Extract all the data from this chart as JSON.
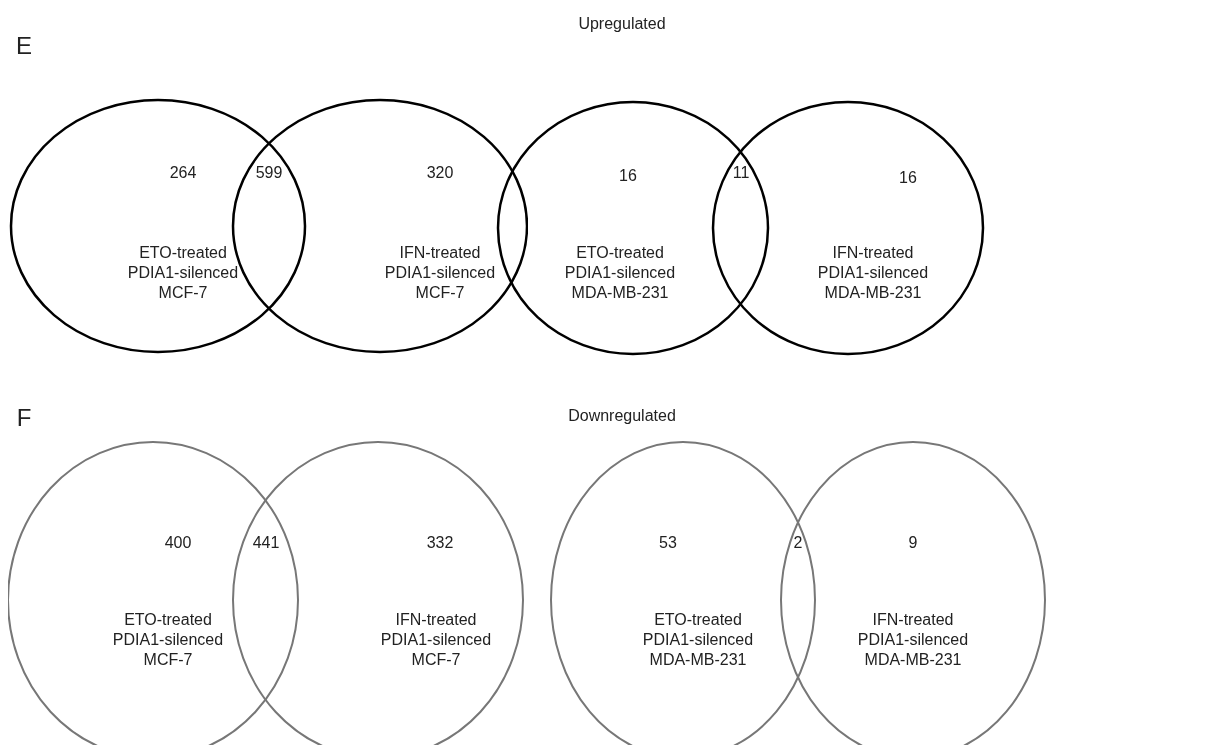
{
  "chart_data": [
    {
      "type": "other",
      "title": "Upregulated",
      "annotations": [
        "E"
      ],
      "categories": [
        "ETO-treated\nPDIA1-silenced\nMCF-7",
        null,
        "IFN-treated\nPDIA1-silenced\nMCF-7"
      ],
      "values": [
        264,
        599,
        320
      ],
      "data_labels": true,
      "color": "#000000"
    },
    {
      "type": "other",
      "categories": [
        "ETO-treated\nPDIA1-silenced\nMDA-MB-231",
        null,
        "IFN-treated\nPDIA1-silenced\nMDA-MB-231"
      ],
      "values": [
        16,
        11,
        16
      ],
      "data_labels": true,
      "color": "#000000"
    },
    {
      "type": "other",
      "title": "Downregulated",
      "annotations": [
        "F"
      ],
      "categories": [
        "ETO-treated\nPDIA1-silenced\nMCF-7",
        null,
        "IFN-treated\nPDIA1-silenced\nMCF-7"
      ],
      "values": [
        400,
        441,
        332
      ],
      "data_labels": true,
      "color": "#777777"
    },
    {
      "type": "other",
      "categories": [
        "ETO-treated\nPDIA1-silenced\nMDA-MB-231",
        null,
        "IFN-treated\nPDIA1-silenced\nMDA-MB-231"
      ],
      "values": [
        53,
        2,
        9
      ],
      "data_labels": true,
      "color": "#777777"
    }
  ]
}
